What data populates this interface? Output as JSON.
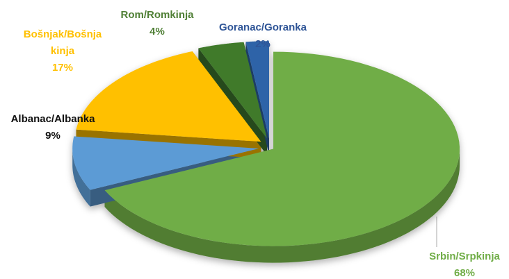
{
  "chart_data": {
    "type": "pie",
    "categories": [
      "Srbin/Srpkinja",
      "Albanac/Albanka",
      "Bošnjak/Bošnja kinja",
      "Rom/Romkinja",
      "Goranac/Goranka"
    ],
    "values": [
      68,
      9,
      17,
      4,
      2
    ],
    "value_labels": [
      "68%",
      "9%",
      "17%",
      "4%",
      "2%"
    ],
    "colors": [
      "#70ad47",
      "#5b9bd5",
      "#ffc000",
      "#3f7a2c",
      "#2e64a8"
    ],
    "label_colors": [
      "#70ad47",
      "#111111",
      "#ffc000",
      "#4f7f35",
      "#2f5597"
    ]
  }
}
